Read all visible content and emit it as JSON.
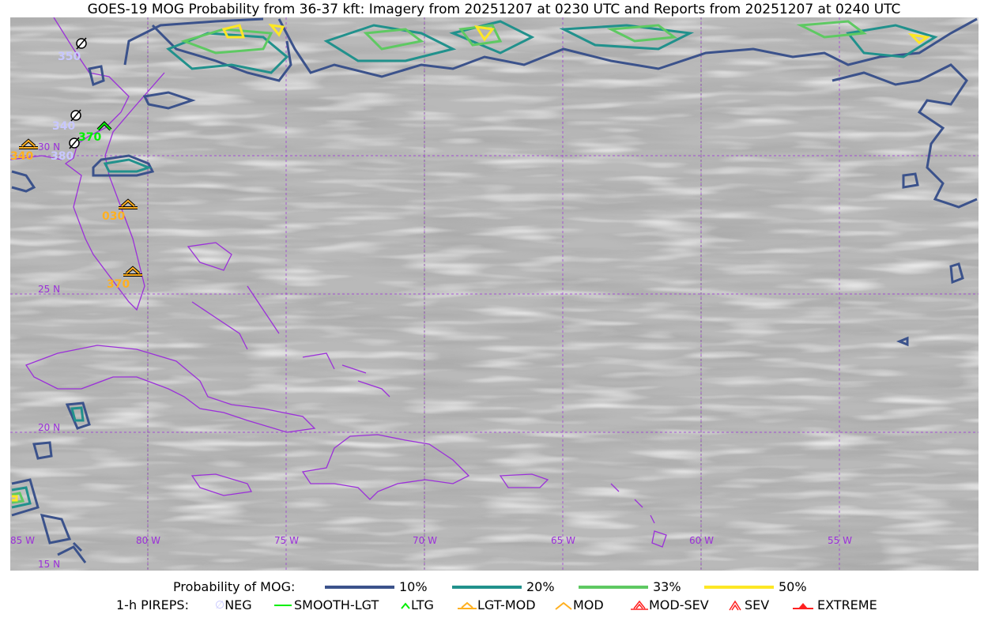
{
  "title": "GOES-19 MOG Probability from 36-37 kft: Imagery from 20251207 at 0230 UTC and Reports from 20251207 at 0240 UTC",
  "grid_labels": {
    "lon": [
      "85 W",
      "80 W",
      "75 W",
      "70 W",
      "65 W",
      "60 W",
      "55 W"
    ],
    "lat": [
      "30 N",
      "25 N",
      "20 N",
      "15 N"
    ]
  },
  "colors": {
    "p10": "#3b528b",
    "p20": "#21918c",
    "p33": "#5ec962",
    "p50": "#fde725",
    "coast": "#9b30d9",
    "neg": "#c8c8ff",
    "ltg": "#00ee00",
    "lgt_mod": "#ffb020",
    "sev": "#ff2020"
  },
  "legend": {
    "prob_title": "Probability of MOG:",
    "prob_items": [
      {
        "label": "10%",
        "color": "#3b528b"
      },
      {
        "label": "20%",
        "color": "#21918c"
      },
      {
        "label": "33%",
        "color": "#5ec962"
      },
      {
        "label": "50%",
        "color": "#fde725"
      }
    ],
    "pirep_title": "1-h PIREPS:",
    "pirep_items": [
      {
        "label": "NEG",
        "icon": "neg-icon"
      },
      {
        "label": "SMOOTH-LGT",
        "icon": "smooth-lgt-icon"
      },
      {
        "label": "LTG",
        "icon": "ltg-icon"
      },
      {
        "label": "LGT-MOD",
        "icon": "lgt-mod-icon"
      },
      {
        "label": "MOD",
        "icon": "mod-icon"
      },
      {
        "label": "MOD-SEV",
        "icon": "mod-sev-icon"
      },
      {
        "label": "SEV",
        "icon": "sev-icon"
      },
      {
        "label": "EXTREME",
        "icon": "extreme-icon"
      }
    ]
  },
  "pireps": [
    {
      "type": "NEG",
      "flight_level": "350"
    },
    {
      "type": "NEG",
      "flight_level": "340"
    },
    {
      "type": "NEG",
      "flight_level": "380"
    },
    {
      "type": "LTG",
      "flight_level": "370"
    },
    {
      "type": "LGT-MOD",
      "flight_level": "340"
    },
    {
      "type": "LGT-MOD",
      "flight_level": "030"
    },
    {
      "type": "LGT-MOD",
      "flight_level": "370"
    }
  ]
}
